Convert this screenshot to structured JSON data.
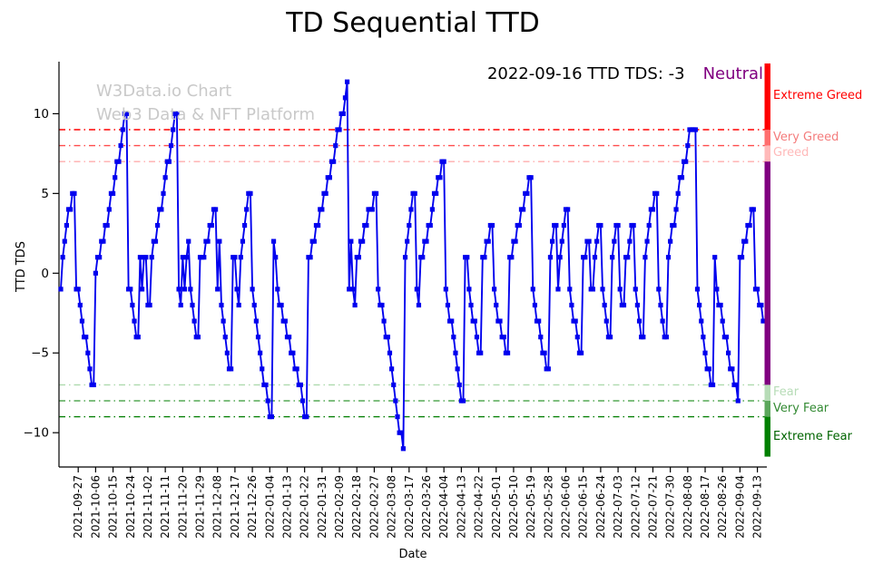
{
  "title": "TD Sequential TTD",
  "annotation": {
    "text": "2022-09-16 TTD TDS: -3",
    "status": "Neutral",
    "status_color": "#800080"
  },
  "watermark": {
    "line1": "W3Data.io Chart",
    "line2": "Web3 Data & NFT Platform"
  },
  "chart_data": {
    "type": "line",
    "title": "TD Sequential TTD",
    "xlabel": "Date",
    "ylabel": "TTD TDS",
    "line_color": "#0000ee",
    "marker": "square",
    "start_date": "2021-09-18",
    "end_date": "2022-09-16",
    "ylim": [
      -12.15,
      13.15
    ],
    "y_ticks": [
      10,
      5,
      0,
      -5,
      -10
    ],
    "y_tick_labels": [
      "10",
      "5",
      "0",
      "−5",
      "−10"
    ],
    "tick_first_index": 9,
    "tick_index_step": 9,
    "x_tick_labels": [
      "2021-09-27",
      "2021-10-06",
      "2021-10-15",
      "2021-10-24",
      "2021-11-02",
      "2021-11-11",
      "2021-11-20",
      "2021-11-29",
      "2021-12-08",
      "2021-12-17",
      "2021-12-26",
      "2022-01-04",
      "2022-01-13",
      "2022-01-22",
      "2022-01-31",
      "2022-02-09",
      "2022-02-18",
      "2022-02-27",
      "2022-03-08",
      "2022-03-17",
      "2022-03-26",
      "2022-04-04",
      "2022-04-13",
      "2022-04-22",
      "2022-05-01",
      "2022-05-10",
      "2022-05-19",
      "2022-05-28",
      "2022-06-06",
      "2022-06-15",
      "2022-06-24",
      "2022-07-03",
      "2022-07-12",
      "2022-07-21",
      "2022-07-30",
      "2022-08-08",
      "2022-08-17",
      "2022-08-26",
      "2022-09-04",
      "2022-09-13"
    ],
    "values": [
      -1,
      1,
      2,
      3,
      4,
      4,
      5,
      5,
      -1,
      -1,
      -2,
      -3,
      -4,
      -4,
      -5,
      -6,
      -7,
      -7,
      0,
      1,
      1,
      2,
      2,
      3,
      3,
      4,
      5,
      5,
      6,
      7,
      7,
      8,
      9,
      10,
      10,
      -1,
      -1,
      -2,
      -3,
      -4,
      -4,
      1,
      -1,
      1,
      1,
      -2,
      -2,
      1,
      2,
      2,
      3,
      4,
      4,
      5,
      6,
      7,
      7,
      8,
      9,
      10,
      10,
      -1,
      -2,
      1,
      -1,
      1,
      2,
      -1,
      -2,
      -3,
      -4,
      -4,
      1,
      1,
      1,
      2,
      2,
      3,
      3,
      4,
      4,
      -1,
      2,
      -2,
      -3,
      -4,
      -5,
      -6,
      -6,
      1,
      1,
      -1,
      -2,
      1,
      2,
      3,
      4,
      5,
      5,
      -1,
      -2,
      -3,
      -4,
      -5,
      -6,
      -7,
      -7,
      -8,
      -9,
      -9,
      2,
      1,
      -1,
      -2,
      -2,
      -3,
      -3,
      -4,
      -4,
      -5,
      -5,
      -6,
      -6,
      -7,
      -7,
      -8,
      -9,
      -9,
      1,
      1,
      2,
      2,
      3,
      3,
      4,
      4,
      5,
      5,
      6,
      6,
      7,
      7,
      8,
      9,
      9,
      10,
      10,
      11,
      12,
      -1,
      2,
      -1,
      -2,
      1,
      1,
      2,
      2,
      3,
      3,
      4,
      4,
      4,
      5,
      5,
      -1,
      -2,
      -2,
      -3,
      -4,
      -4,
      -5,
      -6,
      -7,
      -8,
      -9,
      -10,
      -10,
      -11,
      1,
      2,
      3,
      4,
      5,
      5,
      -1,
      -2,
      1,
      1,
      2,
      2,
      3,
      3,
      4,
      5,
      5,
      6,
      6,
      7,
      7,
      -1,
      -2,
      -3,
      -3,
      -4,
      -5,
      -6,
      -7,
      -8,
      -8,
      1,
      1,
      -1,
      -2,
      -3,
      -3,
      -4,
      -5,
      -5,
      1,
      1,
      2,
      2,
      3,
      3,
      -1,
      -2,
      -3,
      -3,
      -4,
      -4,
      -5,
      -5,
      1,
      1,
      2,
      2,
      3,
      3,
      4,
      4,
      5,
      5,
      6,
      6,
      -1,
      -2,
      -3,
      -3,
      -4,
      -5,
      -5,
      -6,
      -6,
      1,
      2,
      3,
      3,
      -1,
      1,
      2,
      3,
      4,
      4,
      -1,
      -2,
      -3,
      -3,
      -4,
      -5,
      -5,
      1,
      1,
      2,
      2,
      -1,
      -1,
      1,
      2,
      3,
      3,
      -1,
      -2,
      -3,
      -4,
      -4,
      1,
      2,
      3,
      3,
      -1,
      -2,
      -2,
      1,
      1,
      2,
      3,
      3,
      -1,
      -2,
      -3,
      -4,
      -4,
      1,
      2,
      3,
      4,
      4,
      5,
      5,
      -1,
      -2,
      -3,
      -4,
      -4,
      1,
      2,
      3,
      3,
      4,
      5,
      6,
      6,
      7,
      7,
      8,
      9,
      9,
      9,
      9,
      -1,
      -2,
      -3,
      -4,
      -5,
      -6,
      -6,
      -7,
      -7,
      1,
      -1,
      -2,
      -2,
      -3,
      -4,
      -4,
      -5,
      -6,
      -6,
      -7,
      -7,
      -8,
      1,
      1,
      2,
      2,
      3,
      3,
      4,
      4,
      -1,
      -1,
      -2,
      -2,
      -3
    ],
    "thresholds": [
      {
        "value": 9,
        "color": "#ff0000"
      },
      {
        "value": 8,
        "color": "#ff4d4d"
      },
      {
        "value": 7,
        "color": "#ffadad"
      },
      {
        "value": -7,
        "color": "#aed9ae"
      },
      {
        "value": -8,
        "color": "#55a855"
      },
      {
        "value": -9,
        "color": "#068006"
      }
    ],
    "zones": [
      {
        "label": "Extreme Greed",
        "from": 9,
        "to": 13.15,
        "color": "#ff0000",
        "label_color": "#ff0000",
        "show_label": true
      },
      {
        "label": "Very Greed",
        "from": 8,
        "to": 9,
        "color": "#ff6e6e",
        "label_color": "#f47c7c",
        "show_label": true
      },
      {
        "label": "Greed",
        "from": 7,
        "to": 8,
        "color": "#ffb9b9",
        "label_color": "#ffb9b9",
        "show_label": true
      },
      {
        "label": "Neutral",
        "from": -7,
        "to": 7,
        "color": "#800080",
        "label_color": "#800080",
        "show_label": false
      },
      {
        "label": "Fear",
        "from": -8,
        "to": -7,
        "color": "#b7dcb7",
        "label_color": "#b7dcb7",
        "show_label": true
      },
      {
        "label": "Very Fear",
        "from": -9,
        "to": -8,
        "color": "#5ca75c",
        "label_color": "#338a33",
        "show_label": true
      },
      {
        "label": "Extreme Fear",
        "from": -11.5,
        "to": -9,
        "color": "#008000",
        "label_color": "#006400",
        "show_label": true
      }
    ]
  }
}
